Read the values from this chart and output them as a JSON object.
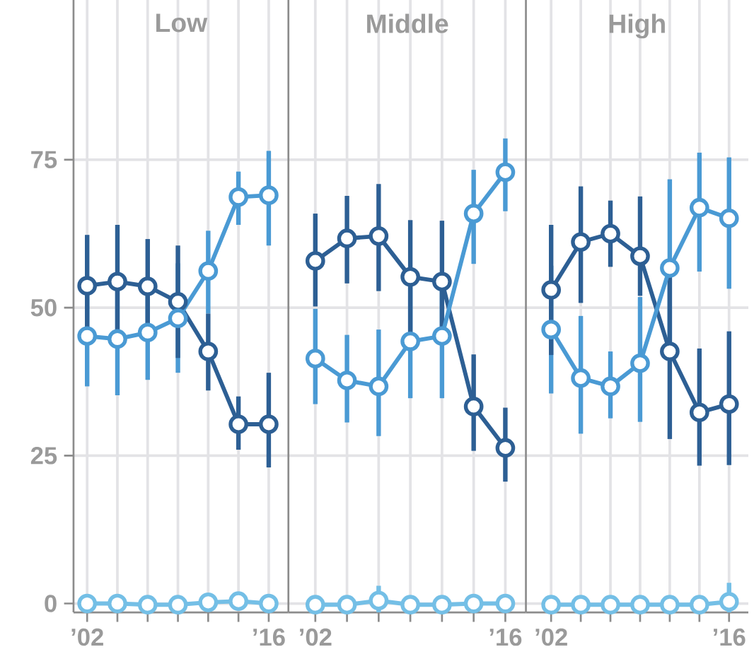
{
  "chart_data": [
    {
      "type": "line",
      "title": "Low",
      "categories": [
        "’02",
        null,
        null,
        null,
        null,
        null,
        "’16"
      ],
      "ylim": [
        -1.5,
        102
      ],
      "yticks": [
        0,
        25,
        50,
        75
      ],
      "grid": true,
      "marker": "circle",
      "series": [
        {
          "color": "#2d5f94",
          "values": [
            53.7,
            54.4,
            53.6,
            51.0,
            42.6,
            30.3,
            30.3
          ],
          "errors": [
            8.6,
            9.6,
            8,
            9.5,
            [
              36,
              49
            ],
            [
              26,
              35
            ],
            [
              23,
              39
            ]
          ]
        },
        {
          "color": "#4a9ad4",
          "values": [
            45.2,
            44.7,
            45.8,
            48.2,
            56.2,
            68.7,
            69.0
          ],
          "errors": [
            8.5,
            9.5,
            8,
            [
              39,
              57.5
            ],
            [
              49,
              63
            ],
            [
              64,
              73
            ],
            [
              60.5,
              76.5
            ]
          ]
        },
        {
          "color": "#74bfe6",
          "values": [
            0,
            0,
            -0.2,
            -0.2,
            0.2,
            0.4,
            0
          ],
          "errors": [
            null,
            null,
            null,
            null,
            null,
            null,
            null
          ]
        }
      ]
    },
    {
      "type": "line",
      "title": "Middle",
      "categories": [
        "’02",
        null,
        null,
        null,
        null,
        null,
        "’16"
      ],
      "ylim": [
        -1.5,
        102
      ],
      "yticks": [
        0,
        25,
        50,
        75
      ],
      "grid": true,
      "marker": "circle",
      "tick_labels": "x",
      "series": [
        {
          "color": "#2d5f94",
          "values": [
            57.9,
            61.7,
            62.1,
            55.2,
            54.4,
            33.3,
            26.3
          ],
          "errors": [
            [
              50.2,
              65.9
            ],
            [
              54.1,
              68.9
            ],
            [
              52.8,
              70.9
            ],
            9.6,
            10.3,
            [
              25.8,
              42.1
            ],
            [
              20.6,
              33.1
            ]
          ]
        },
        {
          "color": "#4a9ad4",
          "values": [
            41.4,
            37.7,
            36.7,
            44.3,
            45.2,
            65.9,
            72.9
          ],
          "errors": [
            [
              33.7,
              49.8
            ],
            [
              30.6,
              45.4
            ],
            [
              28.3,
              46.3
            ],
            9.6,
            10.5,
            [
              57.4,
              73.3
            ],
            [
              66.3,
              78.6
            ]
          ]
        },
        {
          "color": "#74bfe6",
          "values": [
            -0.2,
            -0.2,
            0.5,
            -0.2,
            -0.2,
            0,
            0
          ],
          "errors": [
            null,
            null,
            2.5,
            null,
            null,
            null,
            null
          ]
        }
      ]
    },
    {
      "type": "line",
      "title": "High",
      "categories": [
        "’02",
        null,
        null,
        null,
        null,
        null,
        "’16"
      ],
      "ylim": [
        -1.5,
        102
      ],
      "yticks": [
        0,
        25,
        50,
        75
      ],
      "grid": true,
      "marker": "circle",
      "tick_labels": "x",
      "series": [
        {
          "color": "#2d5f94",
          "values": [
            53.0,
            61.1,
            62.5,
            58.7,
            42.6,
            32.3,
            33.7
          ],
          "errors": [
            11,
            [
              50.8,
              70.5
            ],
            [
              56.9,
              68.1
            ],
            [
              52,
              68.8
            ],
            14.8,
            [
              23.3,
              43.1
            ],
            [
              23.4,
              46
            ]
          ]
        },
        {
          "color": "#4a9ad4",
          "values": [
            46.3,
            38.1,
            36.7,
            40.6,
            56.7,
            66.9,
            65.1
          ],
          "errors": [
            10.8,
            [
              28.7,
              48.6
            ],
            [
              31.3,
              42.6
            ],
            [
              30.7,
              51.8
            ],
            15,
            [
              56.1,
              76.2
            ],
            [
              53.2,
              75.4
            ]
          ]
        },
        {
          "color": "#74bfe6",
          "values": [
            -0.2,
            -0.2,
            -0.2,
            -0.2,
            -0.2,
            -0.2,
            0.3
          ],
          "errors": [
            null,
            null,
            null,
            null,
            null,
            null,
            3.2
          ]
        }
      ]
    }
  ]
}
